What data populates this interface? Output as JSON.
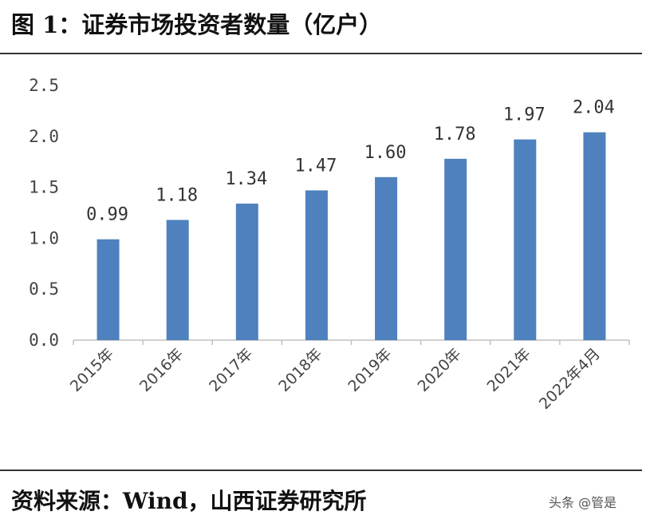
{
  "header": {
    "title": "图 1：证券市场投资者数量（亿户）"
  },
  "footer": {
    "source": "资料来源：Wind，山西证券研究所",
    "watermark": "头条 @管是"
  },
  "chart_data": {
    "type": "bar",
    "title": "图 1：证券市场投资者数量（亿户）",
    "categories": [
      "2015年",
      "2016年",
      "2017年",
      "2018年",
      "2019年",
      "2020年",
      "2021年",
      "2022年4月"
    ],
    "values": [
      0.99,
      1.18,
      1.34,
      1.47,
      1.6,
      1.78,
      1.97,
      2.04
    ],
    "value_labels": [
      "0.99",
      "1.18",
      "1.34",
      "1.47",
      "1.60",
      "1.78",
      "1.97",
      "2.04"
    ],
    "ylim": [
      0,
      2.5
    ],
    "yticks": [
      "0.0",
      "0.5",
      "1.0",
      "1.5",
      "2.0",
      "2.5"
    ],
    "grid": false,
    "bar_color": "#4e81bd",
    "xlabel": "",
    "ylabel": ""
  }
}
